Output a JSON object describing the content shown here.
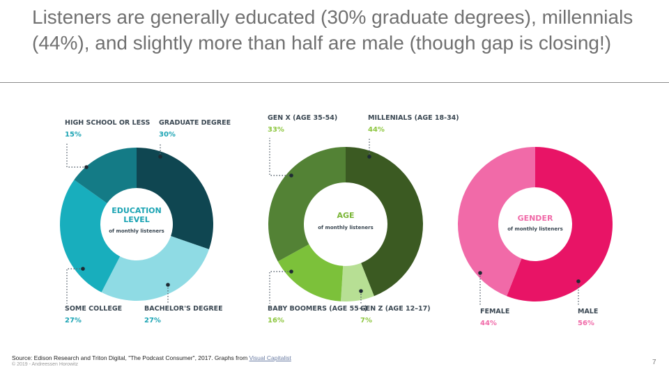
{
  "slide": {
    "title": "Listeners are generally educated (30% graduate degrees), millennials (44%), and slightly more than half are male (though gap is closing!)",
    "source_text": "Source: Edison Research and Triton Digital, \"The Podcast Consumer\", 2017. Graphs from ",
    "source_link": "Visual Capitalist",
    "copyright": "© 2019 - Andreessen Horowitz",
    "page_number": "7"
  },
  "chart_data": [
    {
      "type": "pie",
      "title": "EDUCATION\nLEVEL",
      "subtitle": "of monthly listeners",
      "title_color": "#1aa3b3",
      "start_angle": 0,
      "slices": [
        {
          "label": "GRADUATE DEGREE",
          "value": 30,
          "display": "30%",
          "color": "#0f4651",
          "label_color": "#1aa3b3"
        },
        {
          "label": "BACHELOR'S DEGREE",
          "value": 27,
          "display": "27%",
          "color": "#8fdbe4",
          "label_color": "#1aa3b3"
        },
        {
          "label": "SOME COLLEGE",
          "value": 27,
          "display": "27%",
          "color": "#18aebd",
          "label_color": "#1aa3b3"
        },
        {
          "label": "HIGH SCHOOL OR LESS",
          "value": 15,
          "display": "15%",
          "color": "#147b86",
          "label_color": "#1aa3b3"
        }
      ]
    },
    {
      "type": "pie",
      "title": "AGE",
      "subtitle": "of monthly listeners",
      "title_color": "#7ab536",
      "start_angle": 0,
      "slices": [
        {
          "label": "MILLENIALS (AGE 18-34)",
          "value": 44,
          "display": "44%",
          "color": "#3b5a22",
          "label_color": "#8dc63f"
        },
        {
          "label": "GEN Z (AGE 12–17)",
          "value": 7,
          "display": "7%",
          "color": "#b7df94",
          "label_color": "#8dc63f"
        },
        {
          "label": "BABY BOOMERS (AGE 55+)",
          "value": 16,
          "display": "16%",
          "color": "#7cc13a",
          "label_color": "#8dc63f"
        },
        {
          "label": "GEN X (AGE 35-54)",
          "value": 33,
          "display": "33%",
          "color": "#538235",
          "label_color": "#8dc63f"
        }
      ]
    },
    {
      "type": "pie",
      "title": "GENDER",
      "subtitle": "of monthly listeners",
      "title_color": "#f06aa8",
      "start_angle": 0,
      "slices": [
        {
          "label": "MALE",
          "value": 56,
          "display": "56%",
          "color": "#e81466",
          "label_color": "#f06aa8"
        },
        {
          "label": "FEMALE",
          "value": 44,
          "display": "44%",
          "color": "#f16aa8",
          "label_color": "#f06aa8"
        }
      ]
    }
  ]
}
